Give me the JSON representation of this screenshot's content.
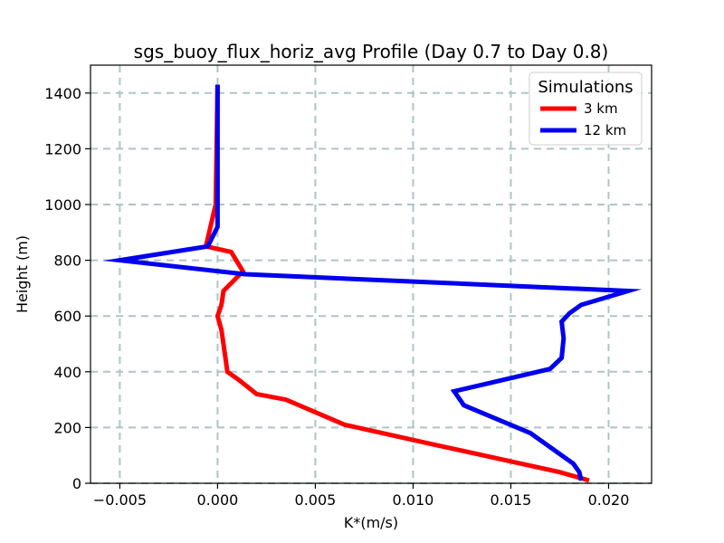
{
  "chart_data": {
    "type": "line",
    "title": "sgs_buoy_flux_horiz_avg Profile (Day 0.7 to Day 0.8)",
    "xlabel": "K*(m/s)",
    "ylabel": "Height (m)",
    "xlim": [
      -0.0065,
      0.0222
    ],
    "ylim": [
      0,
      1500
    ],
    "xticks": [
      -0.005,
      0.0,
      0.005,
      0.01,
      0.015,
      0.02
    ],
    "xtick_labels": [
      "−0.005",
      "0.000",
      "0.005",
      "0.010",
      "0.015",
      "0.020"
    ],
    "yticks": [
      0,
      200,
      400,
      600,
      800,
      1000,
      1200,
      1400
    ],
    "ytick_labels": [
      "0",
      "200",
      "400",
      "600",
      "800",
      "1000",
      "1200",
      "1400"
    ],
    "grid": true,
    "legend": {
      "title": "Simulations",
      "placement": "upper right"
    },
    "series": [
      {
        "name": "3 km",
        "color": "#ff0000",
        "points": [
          [
            0.019,
            10
          ],
          [
            0.0175,
            40
          ],
          [
            0.011,
            140
          ],
          [
            0.0065,
            210
          ],
          [
            0.0035,
            300
          ],
          [
            0.002,
            320
          ],
          [
            0.0011,
            370
          ],
          [
            0.0005,
            400
          ],
          [
            0.0004,
            450
          ],
          [
            0.0003,
            500
          ],
          [
            0.0002,
            550
          ],
          [
            0.0,
            600
          ],
          [
            0.0002,
            640
          ],
          [
            0.0003,
            690
          ],
          [
            0.0013,
            760
          ],
          [
            0.0007,
            830
          ],
          [
            -0.0006,
            850
          ],
          [
            -0.0001,
            1000
          ],
          [
            0.0,
            1430
          ]
        ]
      },
      {
        "name": "12 km",
        "color": "#0000ee",
        "points": [
          [
            0.0186,
            10
          ],
          [
            0.0185,
            40
          ],
          [
            0.0182,
            70
          ],
          [
            0.016,
            180
          ],
          [
            0.0126,
            280
          ],
          [
            0.0121,
            330
          ],
          [
            0.017,
            410
          ],
          [
            0.0176,
            450
          ],
          [
            0.0177,
            520
          ],
          [
            0.0176,
            580
          ],
          [
            0.018,
            610
          ],
          [
            0.0186,
            640
          ],
          [
            0.021,
            690
          ],
          [
            0.0014,
            750
          ],
          [
            -0.005,
            800
          ],
          [
            -0.0005,
            850
          ],
          [
            0.0,
            920
          ],
          [
            0.0,
            1430
          ]
        ]
      }
    ]
  }
}
